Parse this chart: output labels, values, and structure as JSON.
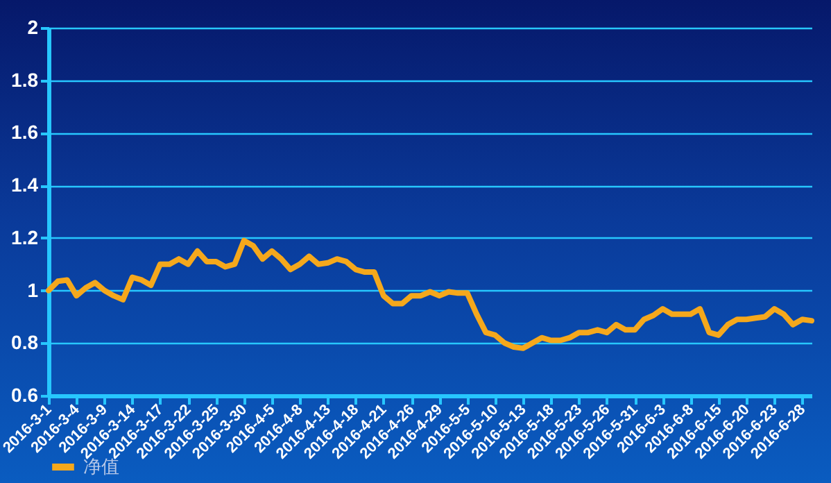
{
  "chart_data": {
    "type": "line",
    "categories": [
      "2016-3-1",
      null,
      null,
      "2016-3-4",
      null,
      null,
      "2016-3-9",
      null,
      null,
      "2016-3-14",
      null,
      null,
      "2016-3-17",
      null,
      null,
      "2016-3-22",
      null,
      null,
      "2016-3-25",
      null,
      null,
      "2016-3-30",
      null,
      null,
      "2016-4-5",
      null,
      null,
      "2016-4-8",
      null,
      null,
      "2016-4-13",
      null,
      null,
      "2016-4-18",
      null,
      null,
      "2016-4-21",
      null,
      null,
      "2016-4-26",
      null,
      null,
      "2016-4-29",
      null,
      null,
      "2016-5-5",
      null,
      null,
      "2016-5-10",
      null,
      null,
      "2016-5-13",
      null,
      null,
      "2016-5-18",
      null,
      null,
      "2016-5-23",
      null,
      null,
      "2016-5-26",
      null,
      null,
      "2016-5-31",
      null,
      null,
      "2016-6-3",
      null,
      null,
      "2016-6-8",
      null,
      null,
      "2016-6-15",
      null,
      null,
      "2016-6-20",
      null,
      null,
      "2016-6-23",
      null,
      null,
      "2016-6-28",
      null
    ],
    "series": [
      {
        "name": "净值",
        "color": "#f5a81c",
        "values": [
          1.0,
          1.035,
          1.04,
          0.98,
          1.01,
          1.03,
          1.0,
          0.98,
          0.965,
          1.05,
          1.04,
          1.02,
          1.1,
          1.1,
          1.12,
          1.1,
          1.15,
          1.11,
          1.11,
          1.09,
          1.1,
          1.19,
          1.17,
          1.12,
          1.15,
          1.12,
          1.08,
          1.1,
          1.13,
          1.1,
          1.105,
          1.12,
          1.11,
          1.08,
          1.07,
          1.07,
          0.98,
          0.95,
          0.95,
          0.98,
          0.98,
          0.995,
          0.98,
          0.995,
          0.99,
          0.99,
          0.91,
          0.84,
          0.83,
          0.8,
          0.785,
          0.78,
          0.8,
          0.82,
          0.81,
          0.81,
          0.82,
          0.84,
          0.84,
          0.85,
          0.84,
          0.87,
          0.85,
          0.85,
          0.89,
          0.905,
          0.93,
          0.91,
          0.91,
          0.91,
          0.93,
          0.84,
          0.83,
          0.87,
          0.89,
          0.89,
          0.895,
          0.9,
          0.93,
          0.91,
          0.87,
          0.89,
          0.885
        ]
      }
    ],
    "ylim": [
      0.6,
      2
    ],
    "yticks": [
      0.6,
      0.8,
      1,
      1.2,
      1.4,
      1.6,
      1.8,
      2
    ],
    "grid": "y",
    "legend": "bottom left",
    "marker": "none",
    "line_style": "solid"
  }
}
